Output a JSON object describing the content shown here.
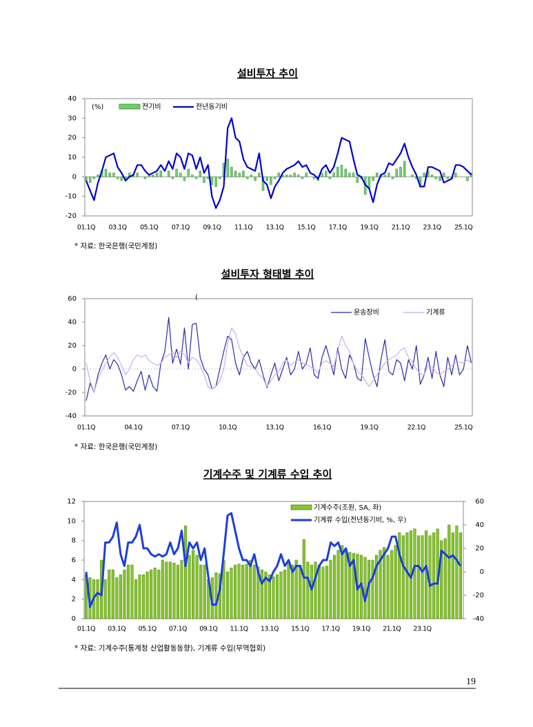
{
  "chart_data": [
    {
      "type": "combo",
      "title": "설비투자 추이",
      "y_label": "(%)",
      "note": "* 자료: 한국은행(국민계정)",
      "legend": "upper left",
      "ylim": [
        -20,
        40
      ],
      "yticks": [
        -20,
        -10,
        0,
        10,
        20,
        30,
        40
      ],
      "categories": [
        "01.1Q",
        null,
        null,
        null,
        null,
        null,
        null,
        null,
        "03.1Q",
        null,
        null,
        null,
        null,
        null,
        null,
        null,
        "05.1Q",
        null,
        null,
        null,
        null,
        null,
        null,
        null,
        "07.1Q",
        null,
        null,
        null,
        null,
        null,
        null,
        null,
        "09.1Q",
        null,
        null,
        null,
        null,
        null,
        null,
        null,
        "11.1Q",
        null,
        null,
        null,
        null,
        null,
        null,
        null,
        "13.1Q",
        null,
        null,
        null,
        null,
        null,
        null,
        null,
        "15.1Q",
        null,
        null,
        null,
        null,
        null,
        null,
        null,
        "17.1Q",
        null,
        null,
        null,
        null,
        null,
        null,
        null,
        "19.1Q",
        null,
        null,
        null,
        null,
        null,
        null,
        null,
        "21.1Q",
        null,
        null,
        null,
        null,
        null,
        null,
        null,
        "23.1Q",
        null,
        null,
        null,
        null,
        null,
        null,
        null,
        "25.1Q",
        null,
        null
      ],
      "series": [
        {
          "name": "전기비",
          "kind": "bar",
          "color": "#6fcf6f",
          "values": [
            -2,
            -3,
            -1,
            1,
            3,
            4,
            2,
            2,
            -1,
            -2,
            -1,
            2,
            1,
            2,
            0,
            -1,
            1,
            1,
            2,
            3,
            0,
            3,
            -1,
            4,
            2,
            -2,
            4,
            1,
            -1,
            3,
            -3,
            -1,
            -4,
            -5,
            -1,
            7,
            9,
            5,
            3,
            2,
            3,
            -1,
            1,
            -2,
            2,
            -7,
            -2,
            -4,
            -1,
            2,
            1,
            1,
            1,
            2,
            1,
            -1,
            2,
            0,
            -1,
            -2,
            2,
            3,
            -1,
            2,
            5,
            6,
            4,
            2,
            2,
            -3,
            -1,
            -9,
            -6,
            -2,
            2,
            1,
            1,
            2,
            -1,
            4,
            5,
            8,
            0,
            1,
            -1,
            -5,
            2,
            3,
            1,
            -1,
            -2,
            2,
            -1,
            -1,
            2,
            0,
            0,
            -2,
            2
          ]
        },
        {
          "name": "전년동기비",
          "kind": "line",
          "color": "#0000cc",
          "values": [
            -2,
            -7,
            -12,
            -3,
            3,
            10,
            11,
            12,
            5,
            2,
            -2,
            0,
            1,
            6,
            6,
            3,
            1,
            2,
            3,
            6,
            3,
            8,
            4,
            12,
            10,
            4,
            12,
            11,
            4,
            10,
            2,
            6,
            -10,
            -16,
            -12,
            -5,
            25,
            30,
            20,
            18,
            9,
            5,
            4,
            3,
            12,
            -2,
            -4,
            -11,
            -5,
            -2,
            2,
            4,
            5,
            6,
            8,
            5,
            6,
            2,
            1,
            -1,
            4,
            6,
            2,
            5,
            12,
            20,
            19,
            18,
            9,
            1,
            0,
            -4,
            -6,
            -13,
            -4,
            1,
            2,
            7,
            6,
            9,
            12,
            17,
            10,
            5,
            1,
            -5,
            -5,
            5,
            5,
            4,
            3,
            -3,
            -2,
            -1,
            6,
            6,
            5,
            3,
            1
          ]
        }
      ]
    },
    {
      "type": "line",
      "title": "설비투자 형태별 추이",
      "annotation": "(",
      "note": "* 자료: 한국은행(국민계정)",
      "legend": "upper right",
      "ylim": [
        -40,
        60
      ],
      "yticks": [
        -40,
        -20,
        0,
        20,
        40,
        60
      ],
      "categories": [
        "01.1Q",
        null,
        null,
        null,
        null,
        null,
        null,
        null,
        null,
        null,
        null,
        null,
        "04.1Q",
        null,
        null,
        null,
        null,
        null,
        null,
        null,
        null,
        null,
        null,
        null,
        "07.1Q",
        null,
        null,
        null,
        null,
        null,
        null,
        null,
        null,
        null,
        null,
        null,
        "10.1Q",
        null,
        null,
        null,
        null,
        null,
        null,
        null,
        null,
        null,
        null,
        null,
        "13.1Q",
        null,
        null,
        null,
        null,
        null,
        null,
        null,
        null,
        null,
        null,
        null,
        "16.1Q",
        null,
        null,
        null,
        null,
        null,
        null,
        null,
        null,
        null,
        null,
        null,
        "19.1Q",
        null,
        null,
        null,
        null,
        null,
        null,
        null,
        null,
        null,
        null,
        null,
        "22.1Q",
        null,
        null,
        null,
        null,
        null,
        null,
        null,
        null,
        null,
        null,
        null,
        "25.1Q",
        null,
        null
      ],
      "series": [
        {
          "name": "운송장비",
          "kind": "line",
          "color": "#2a2aa8",
          "values": [
            -27,
            -12,
            -20,
            -5,
            5,
            12,
            0,
            8,
            4,
            -5,
            -18,
            -15,
            -19,
            -10,
            -2,
            -18,
            -5,
            -15,
            -19,
            5,
            15,
            44,
            5,
            17,
            4,
            35,
            0,
            38,
            39,
            10,
            0,
            -5,
            -17,
            -15,
            0,
            15,
            28,
            25,
            5,
            -5,
            10,
            15,
            5,
            0,
            8,
            -5,
            -16,
            -5,
            5,
            -10,
            0,
            10,
            -5,
            0,
            15,
            0,
            5,
            18,
            -5,
            -8,
            10,
            20,
            8,
            -5,
            18,
            0,
            -8,
            12,
            5,
            -8,
            -10,
            26,
            10,
            -5,
            -15,
            8,
            25,
            -2,
            -5,
            8,
            5,
            -10,
            8,
            0,
            20,
            -13,
            -5,
            10,
            -8,
            15,
            -5,
            -15,
            10,
            -5,
            12,
            -5,
            0,
            20,
            5
          ]
        },
        {
          "name": "기계류",
          "kind": "line",
          "color": "#cdaaea",
          "values": [
            5,
            -10,
            -20,
            -8,
            -2,
            5,
            10,
            14,
            10,
            3,
            -5,
            0,
            8,
            12,
            10,
            12,
            7,
            5,
            3,
            5,
            10,
            12,
            15,
            10,
            15,
            12,
            5,
            10,
            8,
            3,
            -5,
            -15,
            -17,
            -15,
            -10,
            0,
            22,
            35,
            30,
            18,
            10,
            3,
            2,
            0,
            -5,
            -8,
            -15,
            -10,
            -5,
            -2,
            5,
            8,
            3,
            6,
            8,
            5,
            4,
            2,
            0,
            -3,
            5,
            7,
            5,
            2,
            15,
            28,
            20,
            15,
            5,
            -2,
            -5,
            -10,
            -15,
            -10,
            -5,
            0,
            5,
            8,
            10,
            12,
            16,
            18,
            10,
            6,
            0,
            -4,
            -5,
            3,
            2,
            -3,
            -5,
            -2,
            0,
            3,
            5,
            6,
            5,
            8,
            5
          ]
        }
      ]
    },
    {
      "type": "combo",
      "title": "기계수주 및 기계류 수입 추이",
      "note": "* 자료: 기계수주(통계청 산업활동동향), 기계류 수입(무역협회)",
      "legend": "upper right",
      "ylim": [
        0,
        12
      ],
      "yticks": [
        0,
        2,
        4,
        6,
        8,
        10,
        12
      ],
      "y2lim": [
        -40,
        60
      ],
      "y2ticks": [
        -40,
        -20,
        0,
        20,
        40,
        60
      ],
      "categories": [
        "01.1Q",
        null,
        null,
        null,
        null,
        null,
        null,
        null,
        "03.1Q",
        null,
        null,
        null,
        null,
        null,
        null,
        null,
        "05.1Q",
        null,
        null,
        null,
        null,
        null,
        null,
        null,
        "07.1Q",
        null,
        null,
        null,
        null,
        null,
        null,
        null,
        "09.1Q",
        null,
        null,
        null,
        null,
        null,
        null,
        null,
        "11.1Q",
        null,
        null,
        null,
        null,
        null,
        null,
        null,
        "13.1Q",
        null,
        null,
        null,
        null,
        null,
        null,
        null,
        "15.1Q",
        null,
        null,
        null,
        null,
        null,
        null,
        null,
        "17.1Q",
        null,
        null,
        null,
        null,
        null,
        null,
        null,
        "19.1Q",
        null,
        null,
        null,
        null,
        null,
        null,
        null,
        "21.1Q",
        null,
        null,
        null,
        null,
        null,
        null,
        null,
        "23.1Q",
        null,
        null,
        null,
        null,
        null,
        null,
        null,
        null,
        null,
        null
      ],
      "series": [
        {
          "name": "기계수주(조원, SA, 좌)",
          "kind": "bar",
          "color": "#86c62a",
          "values": [
            4.5,
            4.2,
            4.0,
            4.0,
            6.0,
            4.0,
            5.0,
            5.0,
            4.2,
            4.5,
            5.0,
            5.5,
            5.5,
            4.0,
            4.5,
            4.5,
            4.8,
            5.0,
            5.2,
            5.0,
            6.0,
            5.8,
            5.8,
            5.7,
            5.5,
            6.0,
            9.5,
            6.5,
            7.0,
            6.5,
            5.5,
            5.5,
            4.0,
            4.2,
            4.7,
            4.6,
            6.0,
            4.8,
            5.2,
            5.5,
            5.6,
            5.5,
            5.6,
            6.0,
            5.5,
            5.3,
            5.0,
            4.8,
            4.5,
            4.3,
            4.5,
            4.8,
            5.0,
            5.8,
            5.5,
            6.0,
            5.5,
            8.1,
            5.8,
            5.5,
            5.8,
            5.5,
            5.3,
            5.4,
            6.0,
            6.5,
            7.0,
            7.5,
            7.0,
            6.8,
            6.7,
            6.6,
            6.5,
            6.3,
            6.0,
            6.0,
            6.5,
            7.0,
            7.3,
            6.5,
            7.0,
            7.5,
            8.8,
            8.5,
            8.8,
            9.0,
            9.2,
            8.5,
            8.5,
            9.0,
            8.5,
            8.8,
            9.2,
            8.0,
            8.2,
            9.6,
            8.8,
            9.5,
            8.8
          ]
        },
        {
          "name": "기계류 수입(전년동기비, %, 우)",
          "kind": "line",
          "axis": "y2",
          "color": "#1a3de0",
          "values": [
            0,
            -30,
            -22,
            -18,
            -20,
            25,
            25,
            30,
            42,
            15,
            5,
            25,
            25,
            30,
            40,
            20,
            20,
            15,
            13,
            15,
            13,
            15,
            25,
            15,
            20,
            35,
            5,
            25,
            20,
            25,
            10,
            20,
            -5,
            -28,
            -28,
            -15,
            15,
            48,
            50,
            35,
            20,
            10,
            10,
            5,
            15,
            0,
            -10,
            -5,
            -8,
            0,
            5,
            15,
            5,
            10,
            0,
            5,
            5,
            -5,
            -5,
            -15,
            -5,
            5,
            10,
            10,
            25,
            22,
            25,
            15,
            20,
            5,
            10,
            -15,
            -10,
            -25,
            -10,
            -5,
            5,
            10,
            15,
            20,
            30,
            30,
            15,
            5,
            0,
            -5,
            5,
            5,
            0,
            5,
            -12,
            -10,
            -10,
            18,
            15,
            12,
            14,
            10,
            5
          ]
        }
      ]
    }
  ],
  "page_number": 19
}
